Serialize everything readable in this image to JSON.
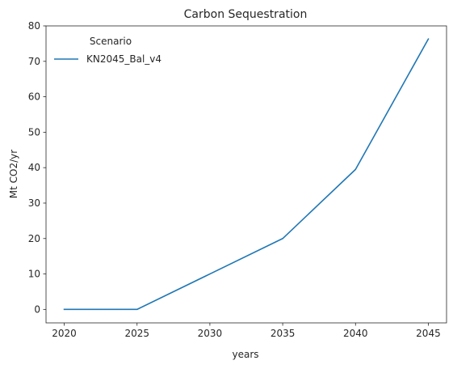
{
  "chart_data": {
    "type": "line",
    "title": "Carbon Sequestration",
    "xlabel": "years",
    "ylabel": "Mt CO2/yr",
    "x": [
      2020,
      2025,
      2030,
      2035,
      2040,
      2045
    ],
    "xticks": [
      "2020",
      "2025",
      "2030",
      "2035",
      "2040",
      "2045"
    ],
    "yticks": [
      "0",
      "10",
      "20",
      "30",
      "40",
      "50",
      "60",
      "70",
      "80"
    ],
    "xlim": [
      2018.75,
      2046.25
    ],
    "ylim": [
      -3.8,
      80
    ],
    "grid": false,
    "legend": {
      "title": "Scenario",
      "placement": "top-left"
    },
    "series": [
      {
        "name": "KN2045_Bal_v4",
        "color": "#1f77b4",
        "values": [
          0,
          0,
          10,
          20,
          39.5,
          76.3
        ]
      }
    ]
  }
}
